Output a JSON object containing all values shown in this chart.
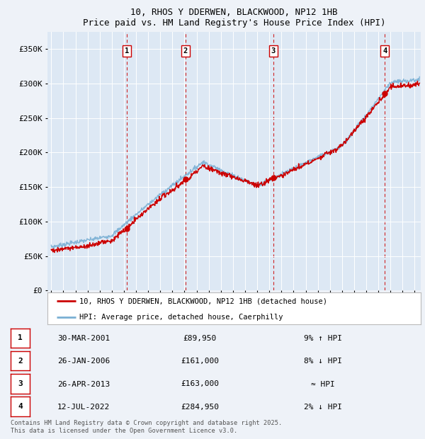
{
  "title": "10, RHOS Y DDERWEN, BLACKWOOD, NP12 1HB",
  "subtitle": "Price paid vs. HM Land Registry's House Price Index (HPI)",
  "background_color": "#eef2f8",
  "plot_bg_color": "#dde8f4",
  "grid_color": "#ffffff",
  "sale_dates": [
    2001.247,
    2006.073,
    2013.319,
    2022.534
  ],
  "sale_prices": [
    89950,
    161000,
    163000,
    284950
  ],
  "legend_entries": [
    "10, RHOS Y DDERWEN, BLACKWOOD, NP12 1HB (detached house)",
    "HPI: Average price, detached house, Caerphilly"
  ],
  "table_rows": [
    {
      "num": "1",
      "date": "30-MAR-2001",
      "price": "£89,950",
      "rel": "9% ↑ HPI"
    },
    {
      "num": "2",
      "date": "26-JAN-2006",
      "price": "£161,000",
      "rel": "8% ↓ HPI"
    },
    {
      "num": "3",
      "date": "26-APR-2013",
      "price": "£163,000",
      "rel": "≈ HPI"
    },
    {
      "num": "4",
      "date": "12-JUL-2022",
      "price": "£284,950",
      "rel": "2% ↓ HPI"
    }
  ],
  "footer": "Contains HM Land Registry data © Crown copyright and database right 2025.\nThis data is licensed under the Open Government Licence v3.0.",
  "xmin": 1994.7,
  "xmax": 2025.5,
  "ymin": 0,
  "ymax": 375000,
  "yticks": [
    0,
    50000,
    100000,
    150000,
    200000,
    250000,
    300000,
    350000
  ],
  "ytick_labels": [
    "£0",
    "£50K",
    "£100K",
    "£150K",
    "£200K",
    "£250K",
    "£300K",
    "£350K"
  ],
  "red_color": "#cc0000",
  "blue_color": "#7ab0d4",
  "dot_color": "#cc0000"
}
